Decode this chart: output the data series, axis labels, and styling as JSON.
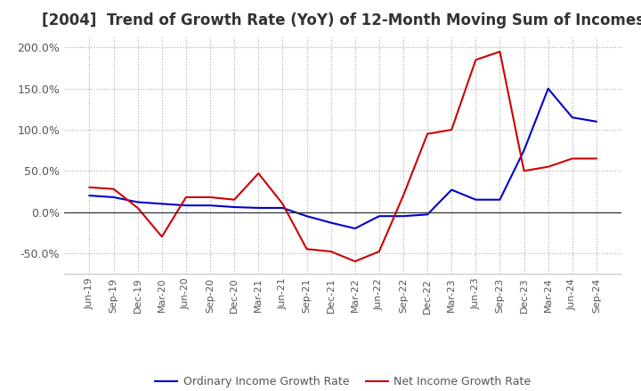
{
  "title": "[2004]  Trend of Growth Rate (YoY) of 12-Month Moving Sum of Incomes",
  "title_fontsize": 12,
  "ylim": [
    -75,
    215
  ],
  "yticks": [
    -50,
    0,
    50,
    100,
    150,
    200
  ],
  "yticklabels": [
    "-50.0%",
    "0.0%",
    "50.0%",
    "100.0%",
    "150.0%",
    "200.0%"
  ],
  "background_color": "#ffffff",
  "grid_color": "#aaaaaa",
  "ordinary_color": "#0000cc",
  "net_color": "#cc0000",
  "legend_labels": [
    "Ordinary Income Growth Rate",
    "Net Income Growth Rate"
  ],
  "x_labels": [
    "Jun-19",
    "Sep-19",
    "Dec-19",
    "Mar-20",
    "Jun-20",
    "Sep-20",
    "Dec-20",
    "Mar-21",
    "Jun-21",
    "Sep-21",
    "Dec-21",
    "Mar-22",
    "Jun-22",
    "Sep-22",
    "Dec-22",
    "Mar-23",
    "Jun-23",
    "Sep-23",
    "Dec-23",
    "Mar-24",
    "Jun-24",
    "Sep-24"
  ],
  "ordinary_income": [
    20,
    18,
    12,
    10,
    8,
    8,
    6,
    5,
    5,
    -5,
    -13,
    -20,
    -5,
    -5,
    -3,
    27,
    15,
    15,
    75,
    150,
    115,
    110
  ],
  "net_income": [
    30,
    28,
    5,
    -30,
    18,
    18,
    15,
    47,
    10,
    -45,
    -48,
    -60,
    -48,
    20,
    95,
    100,
    185,
    195,
    50,
    55,
    65,
    65
  ]
}
